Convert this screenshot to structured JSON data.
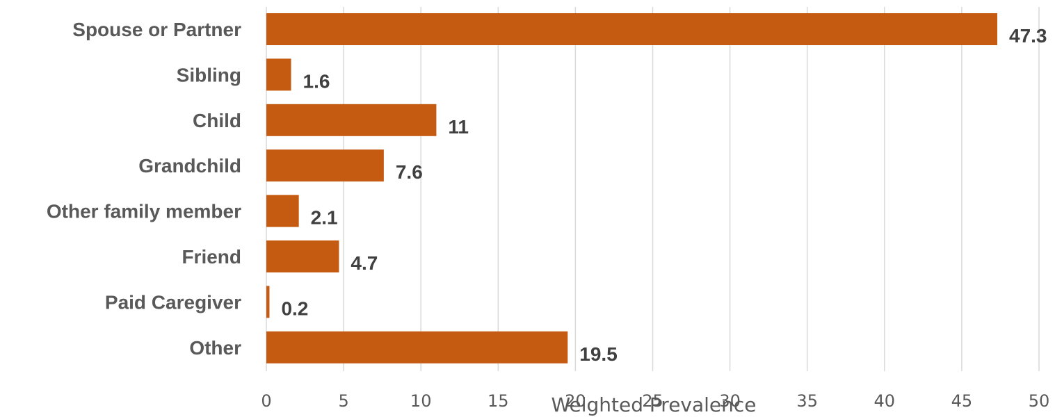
{
  "chart_data": {
    "type": "bar",
    "orientation": "horizontal",
    "categories": [
      "Spouse or Partner",
      "Sibling",
      "Child",
      "Grandchild",
      "Other family member",
      "Friend",
      "Paid Caregiver",
      "Other"
    ],
    "values": [
      47.3,
      1.6,
      11,
      7.6,
      2.1,
      4.7,
      0.2,
      19.5
    ],
    "value_labels": [
      "47.3",
      "1.6",
      "11",
      "7.6",
      "2.1",
      "4.7",
      "0.2",
      "19.5"
    ],
    "title": "",
    "xlabel": "Weighted Prevalence",
    "ylabel": "",
    "xlim": [
      0,
      50
    ],
    "xticks": [
      0,
      5,
      10,
      15,
      20,
      25,
      30,
      35,
      40,
      45,
      50
    ],
    "grid": "vertical",
    "legend": "none",
    "colors": {
      "bar": "#c55a11",
      "grid": "#d9d9d9",
      "category_text": "#595959",
      "value_text": "#404040",
      "tick_text": "#595959"
    }
  }
}
